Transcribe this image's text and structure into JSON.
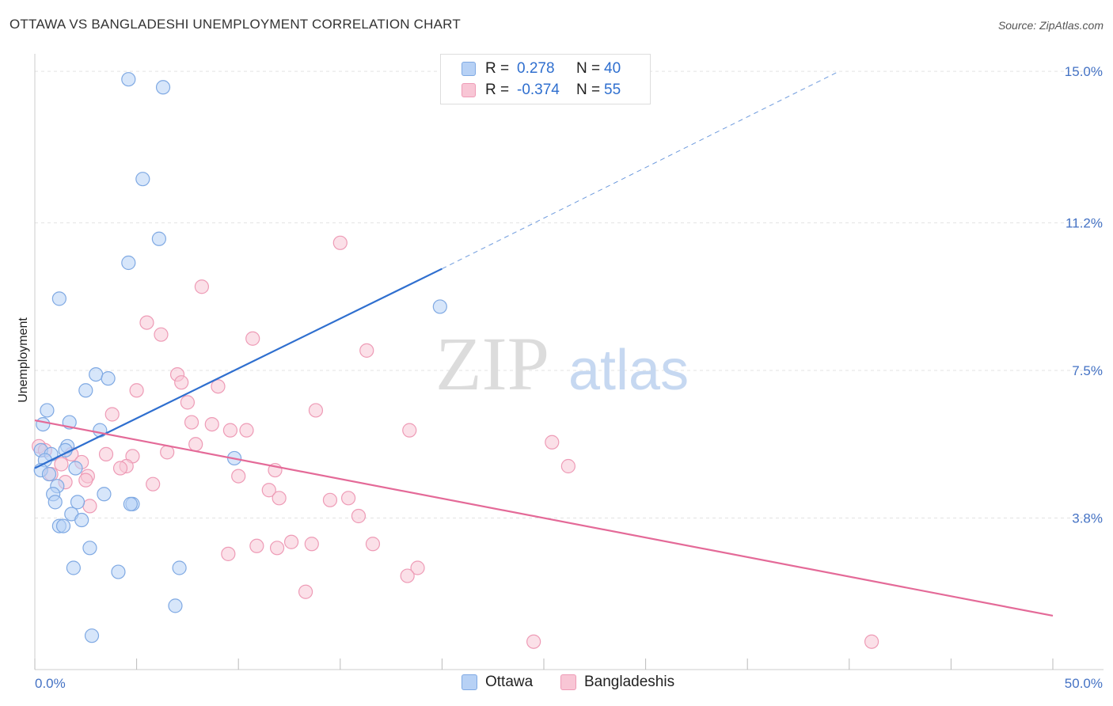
{
  "title": "OTTAWA VS BANGLADESHI UNEMPLOYMENT CORRELATION CHART",
  "source": "Source: ZipAtlas.com",
  "watermark": {
    "zip": "ZIP",
    "atlas": "atlas"
  },
  "legend": {
    "rows": [
      {
        "r_label": "R =",
        "r_value": "0.278",
        "n_label": "N =",
        "n_value": "40"
      },
      {
        "r_label": "R =",
        "r_value": "-0.374",
        "n_label": "N =",
        "n_value": "55"
      }
    ]
  },
  "colors": {
    "ottawa_fill": "#b7d1f5",
    "ottawa_stroke": "#7fa9e3",
    "ottawa_line": "#2f6fcf",
    "bangla_fill": "#f8c6d5",
    "bangla_stroke": "#ee9bb6",
    "bangla_line": "#e46a98",
    "tick_text": "#4472c4",
    "grid": "#e3e3e3"
  },
  "chart_data": {
    "type": "scatter",
    "title": "OTTAWA VS BANGLADESHI UNEMPLOYMENT CORRELATION CHART",
    "xlabel": "",
    "ylabel": "Unemployment",
    "xlim": [
      0,
      50
    ],
    "ylim": [
      0,
      15.3
    ],
    "x_tick_labels": [
      "0.0%",
      "50.0%"
    ],
    "y_ticks": [
      3.8,
      7.5,
      11.2,
      15.0
    ],
    "y_tick_labels": [
      "3.8%",
      "7.5%",
      "11.2%",
      "15.0%"
    ],
    "series": [
      {
        "name": "Ottawa",
        "r": 0.278,
        "n": 40,
        "trend": {
          "x0": 0,
          "y0": 5.05,
          "x1": 20,
          "y1": 10.05,
          "x_dash_end": 39.5,
          "y_dash_end": 15.0
        },
        "points": [
          [
            4.6,
            14.8
          ],
          [
            6.3,
            14.6
          ],
          [
            5.3,
            12.3
          ],
          [
            6.1,
            10.8
          ],
          [
            4.6,
            10.2
          ],
          [
            1.2,
            9.3
          ],
          [
            19.9,
            9.1
          ],
          [
            3.0,
            7.4
          ],
          [
            3.6,
            7.3
          ],
          [
            2.5,
            7.0
          ],
          [
            0.6,
            6.5
          ],
          [
            1.7,
            6.2
          ],
          [
            0.4,
            6.15
          ],
          [
            3.2,
            6.0
          ],
          [
            1.6,
            5.6
          ],
          [
            0.3,
            5.5
          ],
          [
            0.8,
            5.4
          ],
          [
            1.5,
            5.5
          ],
          [
            9.8,
            5.3
          ],
          [
            0.5,
            5.25
          ],
          [
            2.0,
            5.05
          ],
          [
            0.3,
            5.0
          ],
          [
            0.7,
            4.9
          ],
          [
            1.1,
            4.6
          ],
          [
            0.9,
            4.4
          ],
          [
            3.4,
            4.4
          ],
          [
            1.0,
            4.2
          ],
          [
            2.1,
            4.2
          ],
          [
            4.8,
            4.15
          ],
          [
            1.8,
            3.9
          ],
          [
            2.3,
            3.75
          ],
          [
            1.2,
            3.6
          ],
          [
            1.4,
            3.6
          ],
          [
            2.7,
            3.05
          ],
          [
            1.9,
            2.55
          ],
          [
            4.1,
            2.45
          ],
          [
            7.1,
            2.55
          ],
          [
            6.9,
            1.6
          ],
          [
            2.8,
            0.85
          ],
          [
            4.7,
            4.15
          ]
        ]
      },
      {
        "name": "Bangladeshis",
        "r": -0.374,
        "n": 55,
        "trend": {
          "x0": 0,
          "y0": 6.25,
          "x1": 50,
          "y1": 1.35
        },
        "points": [
          [
            15.0,
            10.7
          ],
          [
            8.2,
            9.6
          ],
          [
            5.5,
            8.7
          ],
          [
            6.2,
            8.4
          ],
          [
            10.7,
            8.3
          ],
          [
            16.3,
            8.0
          ],
          [
            7.0,
            7.4
          ],
          [
            7.2,
            7.2
          ],
          [
            9.0,
            7.1
          ],
          [
            5.0,
            7.0
          ],
          [
            7.5,
            6.7
          ],
          [
            3.8,
            6.4
          ],
          [
            13.8,
            6.5
          ],
          [
            7.7,
            6.2
          ],
          [
            8.7,
            6.15
          ],
          [
            9.6,
            6.0
          ],
          [
            10.4,
            6.0
          ],
          [
            18.4,
            6.0
          ],
          [
            25.4,
            5.7
          ],
          [
            0.2,
            5.6
          ],
          [
            0.5,
            5.5
          ],
          [
            7.9,
            5.65
          ],
          [
            1.8,
            5.4
          ],
          [
            3.5,
            5.4
          ],
          [
            6.5,
            5.45
          ],
          [
            4.8,
            5.35
          ],
          [
            1.3,
            5.15
          ],
          [
            2.3,
            5.2
          ],
          [
            4.5,
            5.1
          ],
          [
            4.2,
            5.05
          ],
          [
            11.8,
            5.0
          ],
          [
            26.2,
            5.1
          ],
          [
            0.8,
            4.9
          ],
          [
            2.6,
            4.85
          ],
          [
            10.0,
            4.85
          ],
          [
            1.5,
            4.7
          ],
          [
            2.5,
            4.75
          ],
          [
            5.8,
            4.65
          ],
          [
            11.5,
            4.5
          ],
          [
            12.0,
            4.3
          ],
          [
            14.5,
            4.25
          ],
          [
            15.4,
            4.3
          ],
          [
            2.7,
            4.1
          ],
          [
            15.9,
            3.85
          ],
          [
            16.6,
            3.15
          ],
          [
            12.6,
            3.2
          ],
          [
            13.6,
            3.15
          ],
          [
            10.9,
            3.1
          ],
          [
            11.9,
            3.05
          ],
          [
            9.5,
            2.9
          ],
          [
            18.8,
            2.55
          ],
          [
            18.3,
            2.35
          ],
          [
            13.3,
            1.95
          ],
          [
            24.5,
            0.7
          ],
          [
            41.1,
            0.7
          ]
        ]
      }
    ]
  }
}
